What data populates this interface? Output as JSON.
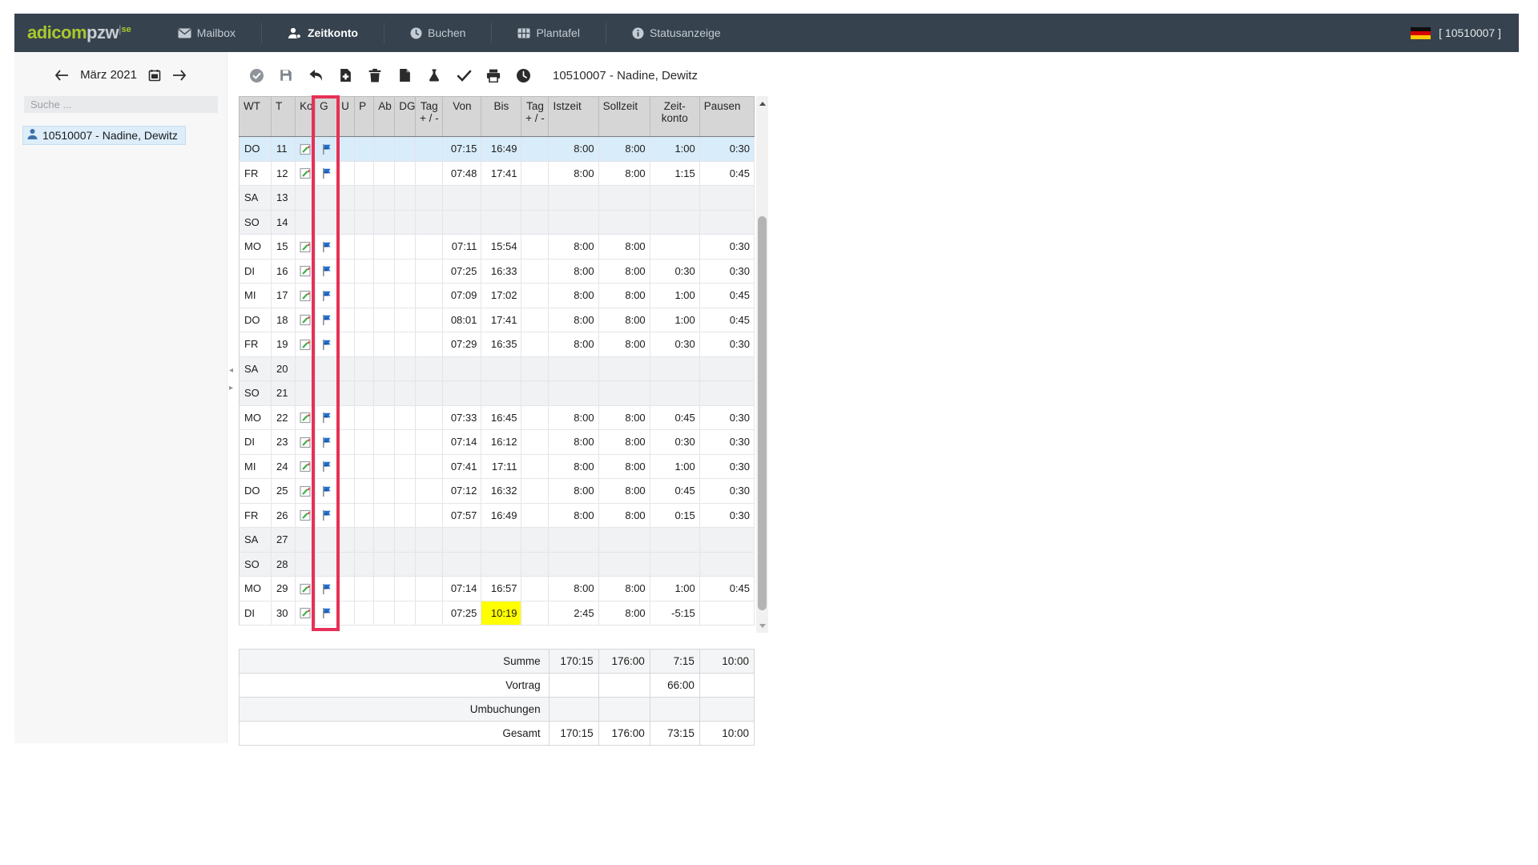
{
  "nav": {
    "logo": {
      "part1": "adicom",
      "part2": "pzw",
      "divider": "|",
      "sup": "se"
    },
    "items": [
      {
        "label": "Mailbox",
        "icon": "envelope-icon",
        "active": false
      },
      {
        "label": "Zeitkonto",
        "icon": "person-clock-icon",
        "active": true
      },
      {
        "label": "Buchen",
        "icon": "clock-icon",
        "active": false
      },
      {
        "label": "Plantafel",
        "icon": "board-grid-icon",
        "active": false
      },
      {
        "label": "Statusanzeige",
        "icon": "info-icon",
        "active": false
      }
    ],
    "flag_icon": "german-flag-icon",
    "user_id": "[ 10510007 ]",
    "colors": {
      "bar": "#36424e",
      "logo_green": "#a9c92c",
      "active_text": "#ffffff",
      "inactive_text": "#c3ccd4"
    }
  },
  "sidebar": {
    "prev_icon": "arrow-left-icon",
    "next_icon": "arrow-right-icon",
    "calendar_icon": "calendar-icon",
    "month_label": "März 2021",
    "search_placeholder": "Suche ...",
    "employee": {
      "icon": "person-icon",
      "label": "10510007 - Nadine, Dewitz",
      "selected": true
    }
  },
  "toolbar": {
    "icons": [
      "approve-circle-icon",
      "save-icon",
      "undo-icon",
      "document-add-icon",
      "trash-icon",
      "document-icon",
      "flask-icon",
      "check-icon",
      "print-icon",
      "clock-icon"
    ],
    "title": "10510007 - Nadine, Dewitz"
  },
  "table": {
    "headers": [
      {
        "l1": "WT",
        "l2": ""
      },
      {
        "l1": "T",
        "l2": ""
      },
      {
        "l1": "Ko",
        "l2": ""
      },
      {
        "l1": "G",
        "l2": ""
      },
      {
        "l1": "U",
        "l2": ""
      },
      {
        "l1": "P",
        "l2": ""
      },
      {
        "l1": "Ab",
        "l2": ""
      },
      {
        "l1": "DG",
        "l2": ""
      },
      {
        "l1": "Tag",
        "l2": "+ / -"
      },
      {
        "l1": "Von",
        "l2": ""
      },
      {
        "l1": "Bis",
        "l2": ""
      },
      {
        "l1": "Tag",
        "l2": "+ / -"
      },
      {
        "l1": "Istzeit",
        "l2": ""
      },
      {
        "l1": "Sollzeit",
        "l2": ""
      },
      {
        "l1": "Zeit-",
        "l2": "konto"
      },
      {
        "l1": "Pausen",
        "l2": ""
      }
    ],
    "highlight_column": {
      "label": "G",
      "color": "#e73056"
    },
    "rows": [
      {
        "wt": "DO",
        "t": "11",
        "has_icons": true,
        "von": "07:15",
        "bis": "16:49",
        "ist": "8:00",
        "soll": "8:00",
        "zk": "1:00",
        "pausen": "0:30",
        "weekend": false,
        "selected": true,
        "bis_highlight": false
      },
      {
        "wt": "FR",
        "t": "12",
        "has_icons": true,
        "von": "07:48",
        "bis": "17:41",
        "ist": "8:00",
        "soll": "8:00",
        "zk": "1:15",
        "pausen": "0:45",
        "weekend": false,
        "selected": false,
        "bis_highlight": false
      },
      {
        "wt": "SA",
        "t": "13",
        "has_icons": false,
        "von": "",
        "bis": "",
        "ist": "",
        "soll": "",
        "zk": "",
        "pausen": "",
        "weekend": true,
        "selected": false,
        "bis_highlight": false
      },
      {
        "wt": "SO",
        "t": "14",
        "has_icons": false,
        "von": "",
        "bis": "",
        "ist": "",
        "soll": "",
        "zk": "",
        "pausen": "",
        "weekend": true,
        "selected": false,
        "bis_highlight": false
      },
      {
        "wt": "MO",
        "t": "15",
        "has_icons": true,
        "von": "07:11",
        "bis": "15:54",
        "ist": "8:00",
        "soll": "8:00",
        "zk": "",
        "pausen": "0:30",
        "weekend": false,
        "selected": false,
        "bis_highlight": false
      },
      {
        "wt": "DI",
        "t": "16",
        "has_icons": true,
        "von": "07:25",
        "bis": "16:33",
        "ist": "8:00",
        "soll": "8:00",
        "zk": "0:30",
        "pausen": "0:30",
        "weekend": false,
        "selected": false,
        "bis_highlight": false
      },
      {
        "wt": "MI",
        "t": "17",
        "has_icons": true,
        "von": "07:09",
        "bis": "17:02",
        "ist": "8:00",
        "soll": "8:00",
        "zk": "1:00",
        "pausen": "0:45",
        "weekend": false,
        "selected": false,
        "bis_highlight": false
      },
      {
        "wt": "DO",
        "t": "18",
        "has_icons": true,
        "von": "08:01",
        "bis": "17:41",
        "ist": "8:00",
        "soll": "8:00",
        "zk": "1:00",
        "pausen": "0:45",
        "weekend": false,
        "selected": false,
        "bis_highlight": false
      },
      {
        "wt": "FR",
        "t": "19",
        "has_icons": true,
        "von": "07:29",
        "bis": "16:35",
        "ist": "8:00",
        "soll": "8:00",
        "zk": "0:30",
        "pausen": "0:30",
        "weekend": false,
        "selected": false,
        "bis_highlight": false
      },
      {
        "wt": "SA",
        "t": "20",
        "has_icons": false,
        "von": "",
        "bis": "",
        "ist": "",
        "soll": "",
        "zk": "",
        "pausen": "",
        "weekend": true,
        "selected": false,
        "bis_highlight": false
      },
      {
        "wt": "SO",
        "t": "21",
        "has_icons": false,
        "von": "",
        "bis": "",
        "ist": "",
        "soll": "",
        "zk": "",
        "pausen": "",
        "weekend": true,
        "selected": false,
        "bis_highlight": false
      },
      {
        "wt": "MO",
        "t": "22",
        "has_icons": true,
        "von": "07:33",
        "bis": "16:45",
        "ist": "8:00",
        "soll": "8:00",
        "zk": "0:45",
        "pausen": "0:30",
        "weekend": false,
        "selected": false,
        "bis_highlight": false
      },
      {
        "wt": "DI",
        "t": "23",
        "has_icons": true,
        "von": "07:14",
        "bis": "16:12",
        "ist": "8:00",
        "soll": "8:00",
        "zk": "0:30",
        "pausen": "0:30",
        "weekend": false,
        "selected": false,
        "bis_highlight": false
      },
      {
        "wt": "MI",
        "t": "24",
        "has_icons": true,
        "von": "07:41",
        "bis": "17:11",
        "ist": "8:00",
        "soll": "8:00",
        "zk": "1:00",
        "pausen": "0:30",
        "weekend": false,
        "selected": false,
        "bis_highlight": false
      },
      {
        "wt": "DO",
        "t": "25",
        "has_icons": true,
        "von": "07:12",
        "bis": "16:32",
        "ist": "8:00",
        "soll": "8:00",
        "zk": "0:45",
        "pausen": "0:30",
        "weekend": false,
        "selected": false,
        "bis_highlight": false
      },
      {
        "wt": "FR",
        "t": "26",
        "has_icons": true,
        "von": "07:57",
        "bis": "16:49",
        "ist": "8:00",
        "soll": "8:00",
        "zk": "0:15",
        "pausen": "0:30",
        "weekend": false,
        "selected": false,
        "bis_highlight": false
      },
      {
        "wt": "SA",
        "t": "27",
        "has_icons": false,
        "von": "",
        "bis": "",
        "ist": "",
        "soll": "",
        "zk": "",
        "pausen": "",
        "weekend": true,
        "selected": false,
        "bis_highlight": false
      },
      {
        "wt": "SO",
        "t": "28",
        "has_icons": false,
        "von": "",
        "bis": "",
        "ist": "",
        "soll": "",
        "zk": "",
        "pausen": "",
        "weekend": true,
        "selected": false,
        "bis_highlight": false
      },
      {
        "wt": "MO",
        "t": "29",
        "has_icons": true,
        "von": "07:14",
        "bis": "16:57",
        "ist": "8:00",
        "soll": "8:00",
        "zk": "1:00",
        "pausen": "0:45",
        "weekend": false,
        "selected": false,
        "bis_highlight": false
      },
      {
        "wt": "DI",
        "t": "30",
        "has_icons": true,
        "von": "07:25",
        "bis": "10:19",
        "ist": "2:45",
        "soll": "8:00",
        "zk": "-5:15",
        "pausen": "",
        "weekend": false,
        "selected": false,
        "bis_highlight": true
      }
    ],
    "row_icons": {
      "ko": "edit-icon",
      "g": "flag-icon"
    },
    "cell_highlight_color": "#ffff00"
  },
  "summary": {
    "rows": [
      {
        "label": "Summe",
        "values": [
          "170:15",
          "176:00",
          "7:15",
          "10:00"
        ],
        "shaded": true
      },
      {
        "label": "Vortrag",
        "values": [
          "",
          "",
          "66:00",
          ""
        ],
        "shaded": false
      },
      {
        "label": "Umbuchungen",
        "values": [
          "",
          "",
          "",
          ""
        ],
        "shaded": true
      },
      {
        "label": "Gesamt",
        "values": [
          "170:15",
          "176:00",
          "73:15",
          "10:00"
        ],
        "shaded": false
      }
    ]
  }
}
